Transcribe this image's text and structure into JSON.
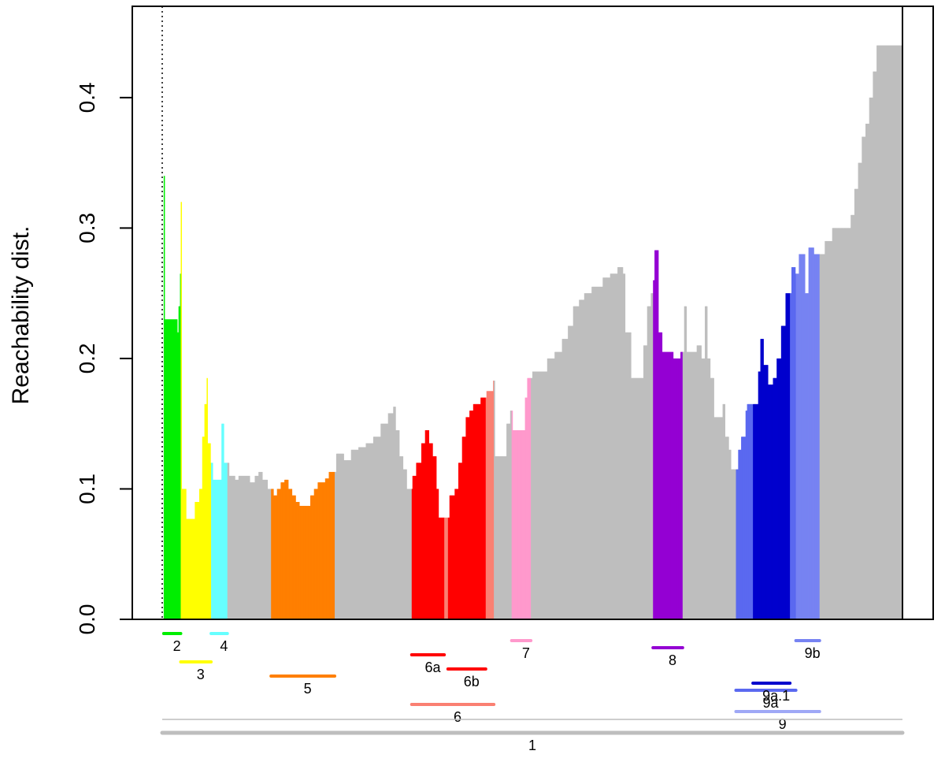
{
  "chart_data": {
    "type": "bar",
    "ylabel": "Reachability dist.",
    "ylim": [
      0,
      0.47
    ],
    "xlim": [
      0,
      1000
    ],
    "yticks": [
      "0.0",
      "0.1",
      "0.2",
      "0.3",
      "0.4"
    ],
    "ytick_values": [
      0.0,
      0.1,
      0.2,
      0.3,
      0.4
    ],
    "colors": {
      "background_bar": "#bebebe",
      "c2": "#00ee00",
      "c3": "#ffff00",
      "c4": "#66ffff",
      "c5": "#ff7f00",
      "c6": "#fa8072",
      "c6a": "#ff0000",
      "c6b": "#ff0000",
      "c7": "#ff99cc",
      "c8": "#9400d3",
      "c9": "#9fa8f6",
      "c9a": "#5a69f0",
      "c9a1": "#0000cd",
      "c9b": "#7783f2"
    },
    "profile": [
      [
        0.0,
        0.0
      ],
      [
        2,
        0.34
      ],
      [
        3,
        0.23
      ],
      [
        20,
        0.22
      ],
      [
        22,
        0.24
      ],
      [
        24,
        0.265
      ],
      [
        25,
        0.32
      ],
      [
        26,
        0.1
      ],
      [
        28,
        0.1
      ],
      [
        32,
        0.077
      ],
      [
        44,
        0.09
      ],
      [
        50,
        0.1
      ],
      [
        54,
        0.14
      ],
      [
        57,
        0.165
      ],
      [
        60,
        0.185
      ],
      [
        61,
        0.135
      ],
      [
        65,
        0.12
      ],
      [
        68,
        0.107
      ],
      [
        77,
        0.107
      ],
      [
        80,
        0.15
      ],
      [
        83,
        0.12
      ],
      [
        90,
        0.11
      ],
      [
        98,
        0.107
      ],
      [
        103,
        0.11
      ],
      [
        110,
        0.11
      ],
      [
        118,
        0.105
      ],
      [
        125,
        0.11
      ],
      [
        130,
        0.113
      ],
      [
        135,
        0.107
      ],
      [
        142,
        0.1
      ],
      [
        150,
        0.095
      ],
      [
        155,
        0.1
      ],
      [
        160,
        0.105
      ],
      [
        165,
        0.107
      ],
      [
        170,
        0.1
      ],
      [
        175,
        0.095
      ],
      [
        180,
        0.09
      ],
      [
        185,
        0.087
      ],
      [
        193,
        0.087
      ],
      [
        200,
        0.095
      ],
      [
        205,
        0.1
      ],
      [
        210,
        0.105
      ],
      [
        215,
        0.105
      ],
      [
        220,
        0.108
      ],
      [
        225,
        0.113
      ],
      [
        235,
        0.127
      ],
      [
        245,
        0.122
      ],
      [
        255,
        0.13
      ],
      [
        265,
        0.132
      ],
      [
        275,
        0.135
      ],
      [
        285,
        0.14
      ],
      [
        295,
        0.15
      ],
      [
        305,
        0.158
      ],
      [
        312,
        0.163
      ],
      [
        315,
        0.145
      ],
      [
        320,
        0.125
      ],
      [
        325,
        0.115
      ],
      [
        330,
        0.1
      ],
      [
        338,
        0.11
      ],
      [
        343,
        0.12
      ],
      [
        350,
        0.135
      ],
      [
        355,
        0.145
      ],
      [
        360,
        0.135
      ],
      [
        365,
        0.125
      ],
      [
        370,
        0.1
      ],
      [
        373,
        0.078
      ],
      [
        383,
        0.078
      ],
      [
        388,
        0.095
      ],
      [
        395,
        0.1
      ],
      [
        400,
        0.12
      ],
      [
        405,
        0.14
      ],
      [
        410,
        0.155
      ],
      [
        415,
        0.16
      ],
      [
        420,
        0.165
      ],
      [
        430,
        0.17
      ],
      [
        438,
        0.175
      ],
      [
        447,
        0.183
      ],
      [
        449,
        0.125
      ],
      [
        462,
        0.125
      ],
      [
        465,
        0.15
      ],
      [
        470,
        0.16
      ],
      [
        473,
        0.145
      ],
      [
        485,
        0.145
      ],
      [
        490,
        0.17
      ],
      [
        493,
        0.185
      ],
      [
        500,
        0.19
      ],
      [
        510,
        0.19
      ],
      [
        520,
        0.2
      ],
      [
        530,
        0.205
      ],
      [
        540,
        0.215
      ],
      [
        548,
        0.225
      ],
      [
        555,
        0.24
      ],
      [
        563,
        0.245
      ],
      [
        570,
        0.25
      ],
      [
        580,
        0.255
      ],
      [
        595,
        0.262
      ],
      [
        605,
        0.265
      ],
      [
        615,
        0.27
      ],
      [
        622,
        0.265
      ],
      [
        625,
        0.22
      ],
      [
        633,
        0.185
      ],
      [
        645,
        0.185
      ],
      [
        650,
        0.21
      ],
      [
        655,
        0.24
      ],
      [
        660,
        0.25
      ],
      [
        663,
        0.26
      ],
      [
        665,
        0.283
      ],
      [
        670,
        0.22
      ],
      [
        675,
        0.205
      ],
      [
        690,
        0.2
      ],
      [
        700,
        0.205
      ],
      [
        705,
        0.24
      ],
      [
        708,
        0.205
      ],
      [
        718,
        0.205
      ],
      [
        722,
        0.21
      ],
      [
        728,
        0.2
      ],
      [
        733,
        0.24
      ],
      [
        736,
        0.2
      ],
      [
        740,
        0.185
      ],
      [
        745,
        0.155
      ],
      [
        755,
        0.155
      ],
      [
        757,
        0.165
      ],
      [
        760,
        0.14
      ],
      [
        765,
        0.13
      ],
      [
        768,
        0.115
      ],
      [
        775,
        0.115
      ],
      [
        778,
        0.13
      ],
      [
        782,
        0.14
      ],
      [
        788,
        0.16
      ],
      [
        790,
        0.165
      ],
      [
        800,
        0.165
      ],
      [
        805,
        0.19
      ],
      [
        808,
        0.215
      ],
      [
        812,
        0.195
      ],
      [
        818,
        0.18
      ],
      [
        825,
        0.185
      ],
      [
        830,
        0.2
      ],
      [
        836,
        0.225
      ],
      [
        842,
        0.25
      ],
      [
        850,
        0.27
      ],
      [
        855,
        0.265
      ],
      [
        860,
        0.28
      ],
      [
        868,
        0.25
      ],
      [
        873,
        0.285
      ],
      [
        880,
        0.28
      ],
      [
        895,
        0.29
      ],
      [
        905,
        0.3
      ],
      [
        920,
        0.3
      ],
      [
        930,
        0.31
      ],
      [
        935,
        0.33
      ],
      [
        940,
        0.35
      ],
      [
        945,
        0.37
      ],
      [
        950,
        0.38
      ],
      [
        955,
        0.4
      ],
      [
        960,
        0.42
      ],
      [
        965,
        0.44
      ],
      [
        1000,
        0.44
      ]
    ],
    "clusters": [
      {
        "label": "1",
        "start": 0,
        "end": 1000,
        "level": 7,
        "color": "#bebebe"
      },
      {
        "label": "2",
        "start": 2,
        "end": 25,
        "level": 0,
        "color": "#00ee00",
        "fill": true
      },
      {
        "label": "3",
        "start": 25,
        "end": 66,
        "level": 2,
        "color": "#ffff00",
        "fill": true
      },
      {
        "label": "4",
        "start": 66,
        "end": 88,
        "level": 0,
        "color": "#66ffff",
        "fill": true
      },
      {
        "label": "5",
        "start": 147,
        "end": 233,
        "level": 3,
        "color": "#ff7f00",
        "fill": true
      },
      {
        "label": "6",
        "start": 337,
        "end": 448,
        "level": 5,
        "color": "#fa8072",
        "fill": true
      },
      {
        "label": "6a",
        "start": 337,
        "end": 381,
        "level": 1.5,
        "color": "#ff0000",
        "fill": true
      },
      {
        "label": "6b",
        "start": 386,
        "end": 437,
        "level": 2.5,
        "color": "#ff0000",
        "fill": true
      },
      {
        "label": "7",
        "start": 472,
        "end": 498,
        "level": 0.5,
        "color": "#ff99cc",
        "fill": true
      },
      {
        "label": "8",
        "start": 663,
        "end": 703,
        "level": 1,
        "color": "#9400d3",
        "fill": true
      },
      {
        "label": "9",
        "start": 775,
        "end": 888,
        "level": 5.5,
        "color": "#9fa8f6",
        "fill": true
      },
      {
        "label": "9a",
        "start": 775,
        "end": 856,
        "level": 4,
        "color": "#5a69f0",
        "fill": true
      },
      {
        "label": "9a.1",
        "start": 798,
        "end": 848,
        "level": 3.5,
        "color": "#0000cd",
        "fill": true
      },
      {
        "label": "9b",
        "start": 856,
        "end": 888,
        "level": 0.5,
        "color": "#7783f2",
        "fill": true
      }
    ]
  }
}
